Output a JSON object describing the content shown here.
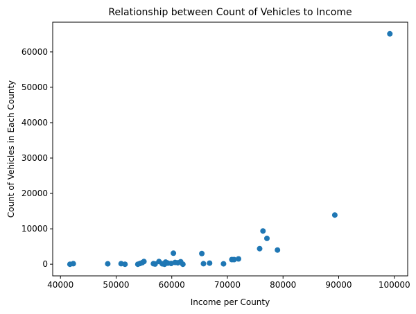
{
  "chart_data": {
    "type": "scatter",
    "title": "Relationship between Count of Vehicles to Income",
    "xlabel": "Income per County",
    "ylabel": "Count of Vehicles in Each County",
    "xlim": [
      38600,
      102400
    ],
    "ylim": [
      -3300,
      68400
    ],
    "xticks": [
      40000,
      50000,
      60000,
      70000,
      80000,
      90000,
      100000
    ],
    "yticks": [
      0,
      10000,
      20000,
      30000,
      40000,
      50000,
      60000
    ],
    "grid": false,
    "marker_color": "#1f77b4",
    "points": [
      {
        "x": 41700,
        "y": 0
      },
      {
        "x": 42300,
        "y": 150
      },
      {
        "x": 48500,
        "y": 100
      },
      {
        "x": 50900,
        "y": 150
      },
      {
        "x": 51600,
        "y": 0
      },
      {
        "x": 53900,
        "y": 0
      },
      {
        "x": 54300,
        "y": 200
      },
      {
        "x": 54700,
        "y": 450
      },
      {
        "x": 55000,
        "y": 750
      },
      {
        "x": 56700,
        "y": 150
      },
      {
        "x": 57000,
        "y": 50
      },
      {
        "x": 57700,
        "y": 750
      },
      {
        "x": 58300,
        "y": 100
      },
      {
        "x": 58700,
        "y": 0
      },
      {
        "x": 58900,
        "y": 600
      },
      {
        "x": 59300,
        "y": 300
      },
      {
        "x": 59900,
        "y": 200
      },
      {
        "x": 60300,
        "y": 3100
      },
      {
        "x": 60600,
        "y": 500
      },
      {
        "x": 61100,
        "y": 400
      },
      {
        "x": 61600,
        "y": 700
      },
      {
        "x": 62000,
        "y": 0
      },
      {
        "x": 65400,
        "y": 3000
      },
      {
        "x": 65700,
        "y": 150
      },
      {
        "x": 66800,
        "y": 300
      },
      {
        "x": 69300,
        "y": 100
      },
      {
        "x": 70800,
        "y": 1300
      },
      {
        "x": 71200,
        "y": 1300
      },
      {
        "x": 72000,
        "y": 1500
      },
      {
        "x": 75800,
        "y": 4400
      },
      {
        "x": 76400,
        "y": 9400
      },
      {
        "x": 77100,
        "y": 7300
      },
      {
        "x": 79000,
        "y": 4000
      },
      {
        "x": 89300,
        "y": 13900
      },
      {
        "x": 99200,
        "y": 65100
      }
    ]
  }
}
